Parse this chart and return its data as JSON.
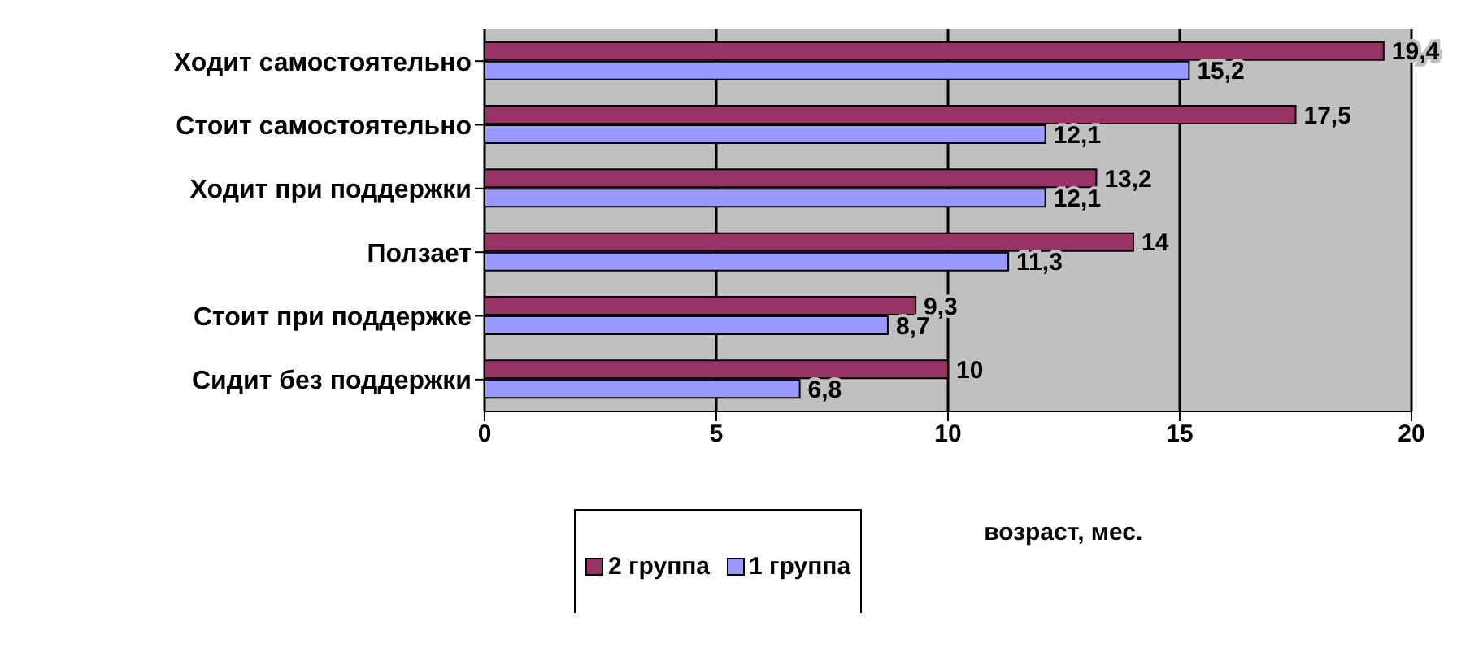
{
  "chart_data": {
    "type": "bar",
    "orientation": "horizontal",
    "xlabel": "возраст, мес.",
    "categories": [
      "Ходит самостоятельно",
      "Стоит самостоятельно",
      "Ходит при поддержки",
      "Ползает",
      "Стоит при поддержке",
      "Сидит без поддержки"
    ],
    "series": [
      {
        "name": "2 группа",
        "color": "#993366",
        "values": [
          19.4,
          17.5,
          13.2,
          14,
          9.3,
          10
        ],
        "value_labels": [
          "19,4",
          "17,5",
          "13,2",
          "14",
          "9,3",
          "10"
        ]
      },
      {
        "name": "1 группа",
        "color": "#9999ff",
        "values": [
          15.2,
          12.1,
          12.1,
          11.3,
          8.7,
          6.8
        ],
        "value_labels": [
          "15,2",
          "12,1",
          "12,1",
          "11,3",
          "8,7",
          "6,8"
        ]
      }
    ],
    "xlim": [
      0,
      20
    ],
    "xticks": [
      0,
      5,
      10,
      15,
      20
    ],
    "grid": "x",
    "legend": "bottom"
  }
}
